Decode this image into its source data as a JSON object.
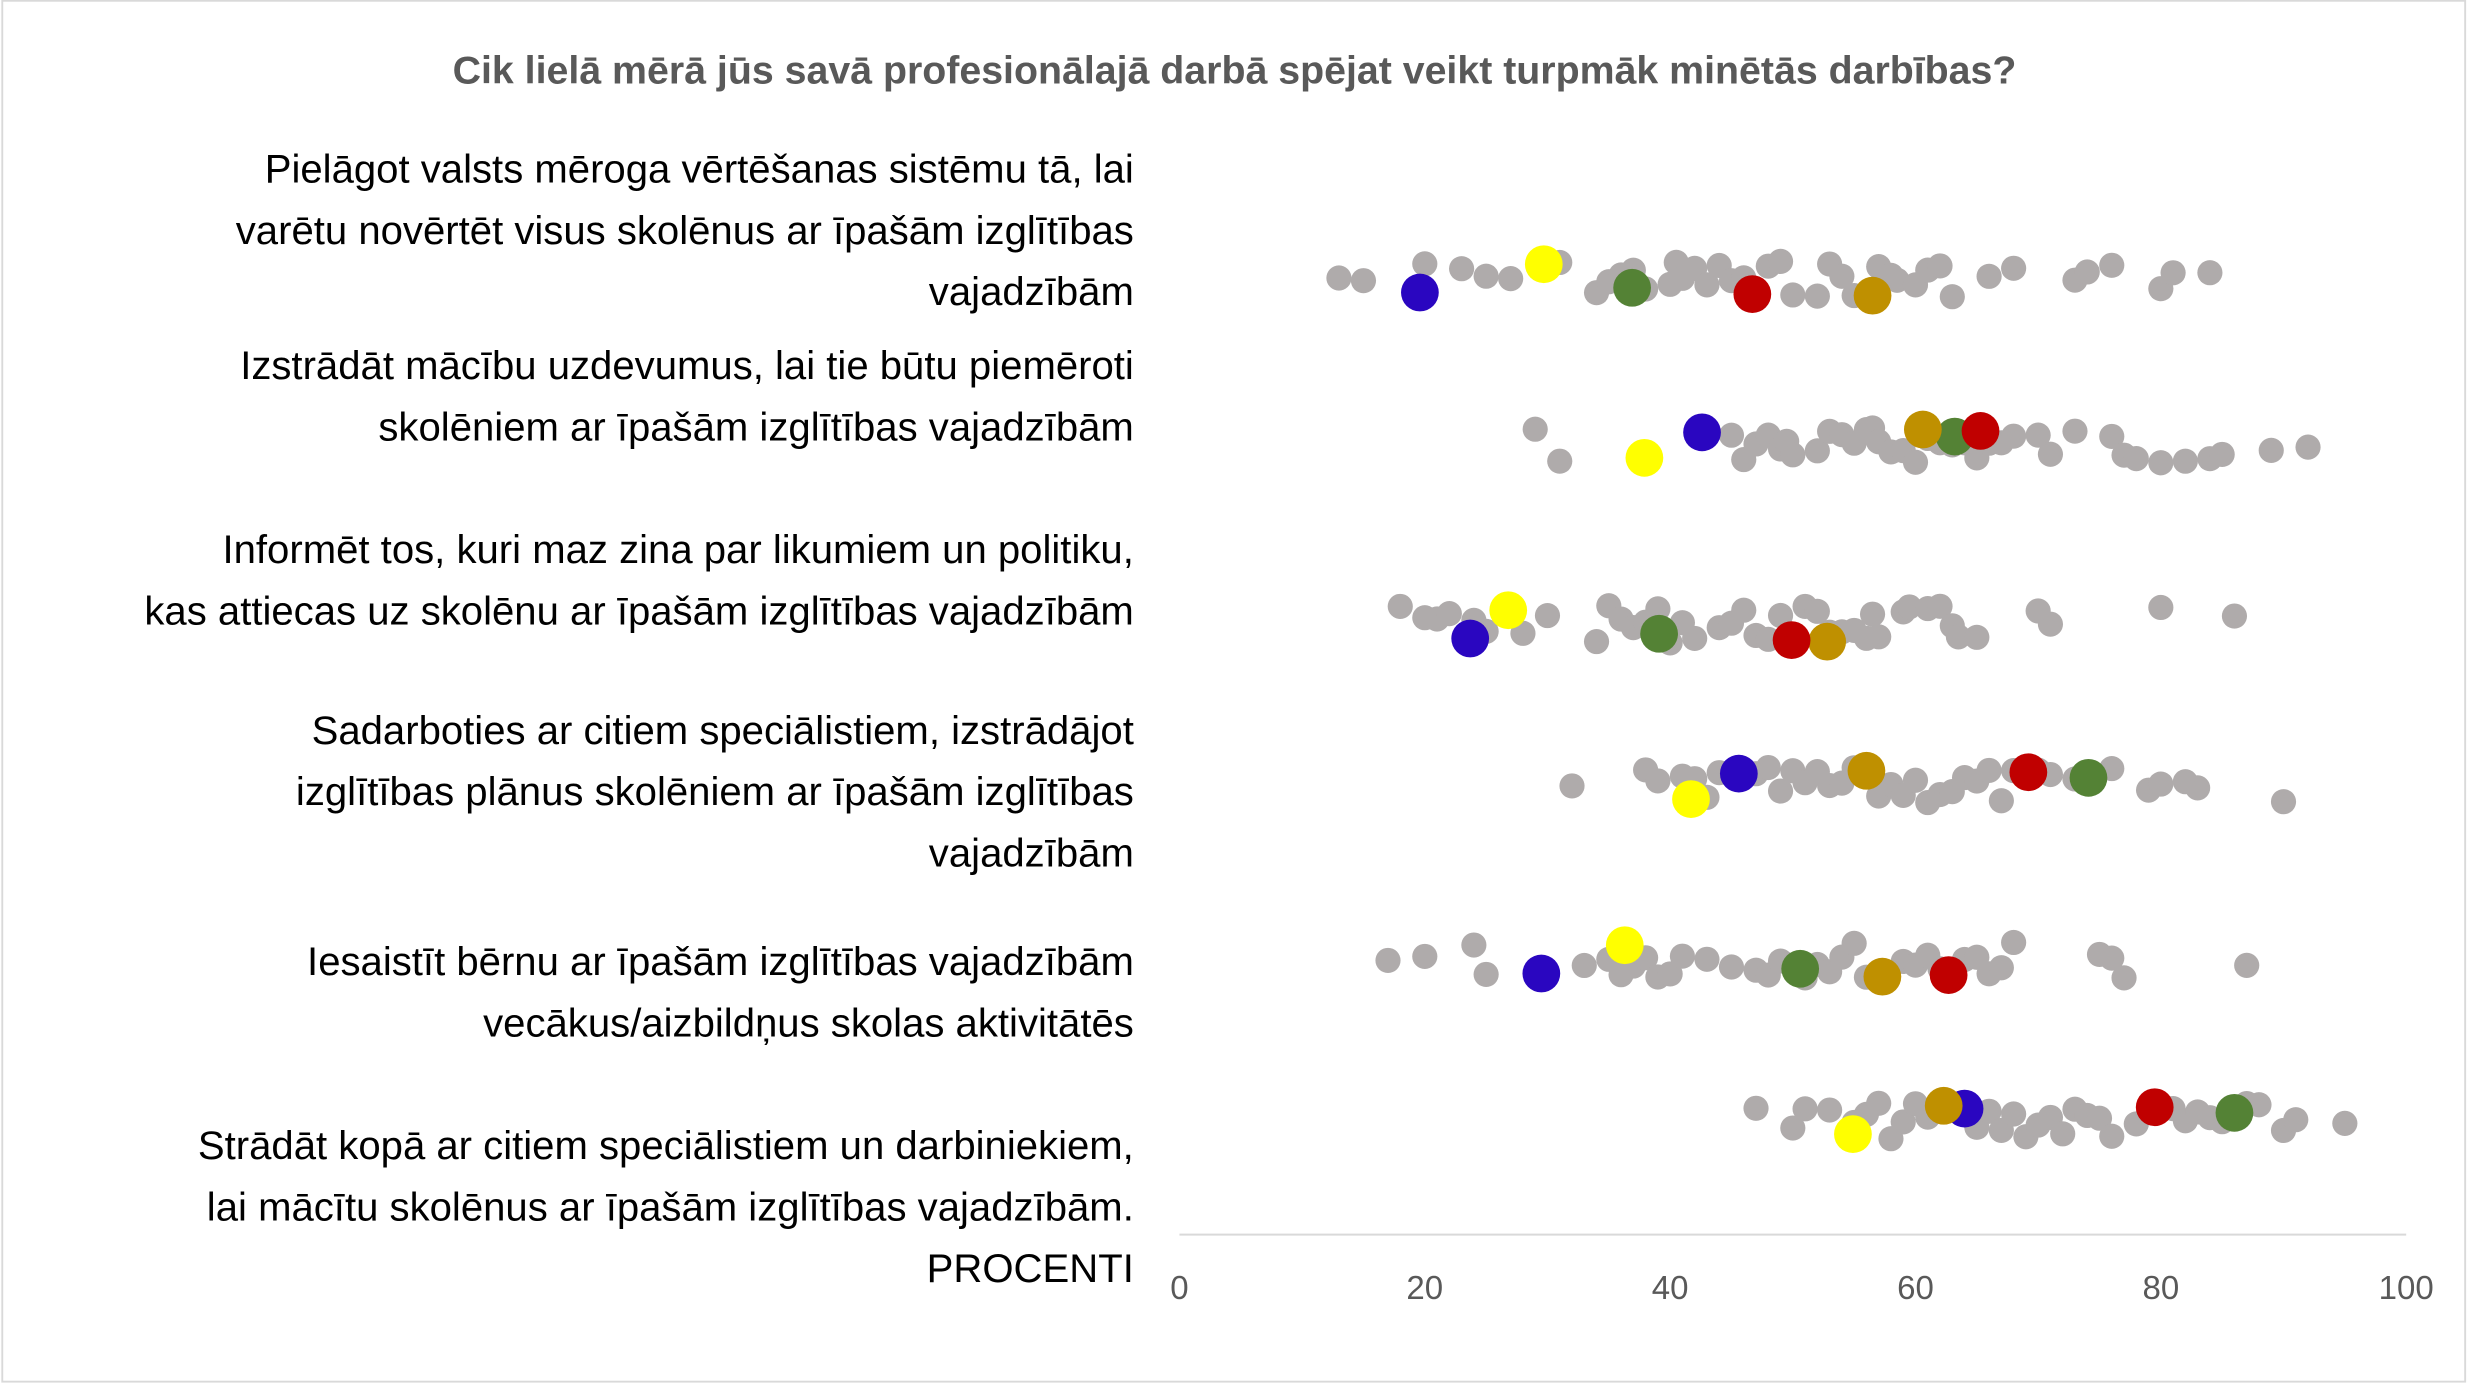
{
  "chart_data": {
    "type": "scatter",
    "title": "Cik lielā mērā jūs savā profesionālajā darbā spējat veikt turpmāk minētās darbības?",
    "xlabel": "PROCENTI",
    "xlim": [
      0,
      100
    ],
    "xticks": [
      "0",
      "20",
      "40",
      "60",
      "80",
      "100"
    ],
    "grid": false,
    "colors": {
      "other": "#AFABAB",
      "yellow": "#FFFF00",
      "blue": "#2A06C0",
      "green": "#548235",
      "red": "#C00000",
      "gold": "#BF9000"
    },
    "categories": [
      {
        "label_lines": [
          "Pielāgot valsts mēroga vērtēšanas sistēmu tā, lai",
          "varētu novērtēt visus skolēnus ar īpašām izglītības",
          "vajadzībām"
        ],
        "others": [
          13,
          15,
          20,
          23,
          25,
          27,
          31,
          34,
          35,
          36,
          37,
          38,
          40,
          40.5,
          41,
          42,
          43,
          44,
          45,
          46,
          48,
          49,
          50,
          52,
          53,
          54,
          55,
          57,
          58,
          58.5,
          60,
          61,
          62,
          63,
          66,
          68,
          73,
          74,
          76,
          80,
          81,
          84
        ],
        "highlighted": {
          "yellow": 29.7,
          "blue": 19.6,
          "green": 36.9,
          "red": 46.7,
          "gold": 56.5
        }
      },
      {
        "label_lines": [
          "Izstrādāt mācību uzdevumus, lai tie būtu piemēroti",
          "skolēniem ar īpašām izglītības vajadzībām"
        ],
        "others": [
          29,
          31,
          45,
          46,
          47,
          48,
          49,
          49.5,
          50,
          52,
          53,
          54,
          55,
          56,
          56.5,
          57,
          58,
          59,
          60,
          61,
          62,
          63,
          64,
          65,
          66,
          67,
          68,
          70,
          71,
          73,
          76,
          77,
          78,
          80,
          82,
          84,
          85,
          89,
          92
        ],
        "highlighted": {
          "yellow": 37.9,
          "blue": 42.6,
          "green": 63.2,
          "red": 65.3,
          "gold": 60.6
        }
      },
      {
        "label_lines": [
          "Informēt tos, kuri maz zina par likumiem un politiku,",
          "kas attiecas uz skolēnu ar īpašām izglītības vajadzībām"
        ],
        "others": [
          18,
          20,
          21,
          22,
          24,
          25,
          28,
          30,
          34,
          35,
          36,
          37,
          38,
          39,
          40,
          41,
          42,
          44,
          45,
          46,
          47,
          48,
          49,
          51,
          52,
          53,
          54,
          55,
          56,
          56.5,
          57,
          59,
          59.5,
          61,
          62,
          63,
          63.5,
          65,
          70,
          71,
          80,
          86
        ],
        "highlighted": {
          "yellow": 26.8,
          "blue": 23.7,
          "green": 39.1,
          "red": 49.9,
          "gold": 52.8
        }
      },
      {
        "label_lines": [
          "Sadarboties ar citiem speciālistiem, izstrādājot",
          "izglītības plānus skolēniem ar īpašām izglītības",
          "vajadzībām"
        ],
        "others": [
          32,
          38,
          39,
          41,
          42,
          43,
          44,
          47,
          48,
          49,
          50,
          51,
          52,
          53,
          54,
          55,
          57,
          58,
          59,
          60,
          61,
          62,
          63,
          64,
          65,
          66,
          67,
          68,
          70,
          71,
          73,
          76,
          79,
          80,
          82,
          83,
          90
        ],
        "highlighted": {
          "yellow": 41.7,
          "blue": 45.6,
          "green": 74.1,
          "red": 69.2,
          "gold": 56.0
        }
      },
      {
        "label_lines": [
          "Iesaistīt bērnu ar īpašām izglītības vajadzībām",
          "vecākus/aizbildņus skolas aktivitātēs"
        ],
        "others": [
          17,
          20,
          24,
          25,
          33,
          35,
          36,
          37,
          38,
          39,
          40,
          41,
          43,
          45,
          47,
          48,
          49,
          51,
          52,
          53,
          54,
          55,
          56,
          59,
          60,
          61,
          62,
          63,
          64,
          65,
          66,
          67,
          68,
          75,
          76,
          77,
          87
        ],
        "highlighted": {
          "yellow": 36.3,
          "blue": 29.5,
          "green": 50.6,
          "red": 62.7,
          "gold": 57.3
        }
      },
      {
        "label_lines": [
          "Strādāt kopā ar citiem speciālistiem un darbiniekiem,",
          "lai mācītu skolēnus ar īpašām izglītības vajadzībām."
        ],
        "others": [
          47,
          50,
          51,
          53,
          55,
          56,
          57,
          58,
          59,
          60,
          61,
          63,
          65,
          66,
          67,
          68,
          69,
          70,
          71,
          72,
          73,
          74,
          75,
          76,
          78,
          80,
          81,
          82,
          83,
          84,
          85,
          86,
          87,
          88,
          90,
          91,
          95
        ],
        "highlighted": {
          "yellow": 54.9,
          "blue": 64.0,
          "green": 86.0,
          "red": 79.5,
          "gold": 62.3
        }
      }
    ]
  }
}
